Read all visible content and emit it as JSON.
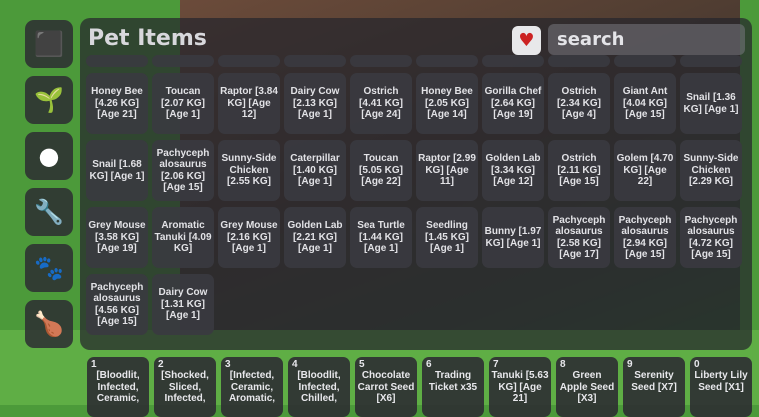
{
  "sidebar": {
    "items": [
      {
        "icon": "cube-icon",
        "glyph": "⬛"
      },
      {
        "icon": "sprout-icon",
        "glyph": "🌱"
      },
      {
        "icon": "tomato-icon",
        "glyph": "●"
      },
      {
        "icon": "wrench-icon",
        "glyph": "🔧"
      },
      {
        "icon": "paw-icon",
        "glyph": "🐾"
      },
      {
        "icon": "drumstick-icon",
        "glyph": "🍗"
      }
    ]
  },
  "panel": {
    "title": "Pet Items",
    "favorite_filter_glyph": "♥",
    "search_placeholder": "search"
  },
  "pets": [
    "Honey Bee [4.26 KG] [Age 21]",
    "Toucan [2.07 KG] [Age 1]",
    "Raptor [3.84 KG] [Age 12]",
    "Dairy Cow [2.13 KG] [Age 1]",
    "Ostrich [4.41 KG] [Age 24]",
    "Honey Bee [2.05 KG] [Age 14]",
    "Gorilla Chef [2.64 KG] [Age 19]",
    "Ostrich [2.34 KG] [Age 4]",
    "Giant Ant [4.04 KG] [Age 15]",
    "Snail [1.36 KG] [Age 1]",
    "Snail [1.68 KG] [Age 1]",
    "Pachycephalosaurus [2.06 KG] [Age 15]",
    "Sunny-Side Chicken [2.55 KG]",
    "Caterpillar [1.40 KG] [Age 1]",
    "Toucan [5.05 KG] [Age 22]",
    "Raptor [2.99 KG] [Age 11]",
    "Golden Lab [3.34 KG] [Age 12]",
    "Ostrich [2.11 KG] [Age 15]",
    "Golem [4.70 KG] [Age 22]",
    "Sunny-Side Chicken [2.29 KG]",
    "Grey Mouse [3.58 KG] [Age 19]",
    "Aromatic Tanuki [4.09 KG]",
    "Grey Mouse [2.16 KG] [Age 1]",
    "Golden Lab [2.21 KG] [Age 1]",
    "Sea Turtle [1.44 KG] [Age 1]",
    "Seedling [1.45 KG] [Age 1]",
    "Bunny [1.97 KG] [Age 1]",
    "Pachycephalosaurus [2.58 KG] [Age 17]",
    "Pachycephalosaurus [2.94 KG] [Age 15]",
    "Pachycephalosaurus [4.72 KG] [Age 15]",
    "Pachycephalosaurus [4.56 KG] [Age 15]",
    "Dairy Cow [1.31 KG] [Age 1]"
  ],
  "hotbar": [
    {
      "key": "1",
      "label": "[Bloodlit, Infected, Ceramic,"
    },
    {
      "key": "2",
      "label": "[Shocked, Sliced, Infected,"
    },
    {
      "key": "3",
      "label": "[Infected, Ceramic, Aromatic,"
    },
    {
      "key": "4",
      "label": "[Bloodlit, Infected, Chilled,"
    },
    {
      "key": "5",
      "label": "Chocolate Carrot Seed [X6]"
    },
    {
      "key": "6",
      "label": "Trading Ticket x35"
    },
    {
      "key": "7",
      "label": "Tanuki [5.63 KG] [Age 21]"
    },
    {
      "key": "8",
      "label": "Green Apple Seed [X3]"
    },
    {
      "key": "9",
      "label": "Serenity Seed [X7]"
    },
    {
      "key": "0",
      "label": "Liberty Lily Seed [X1]"
    }
  ]
}
